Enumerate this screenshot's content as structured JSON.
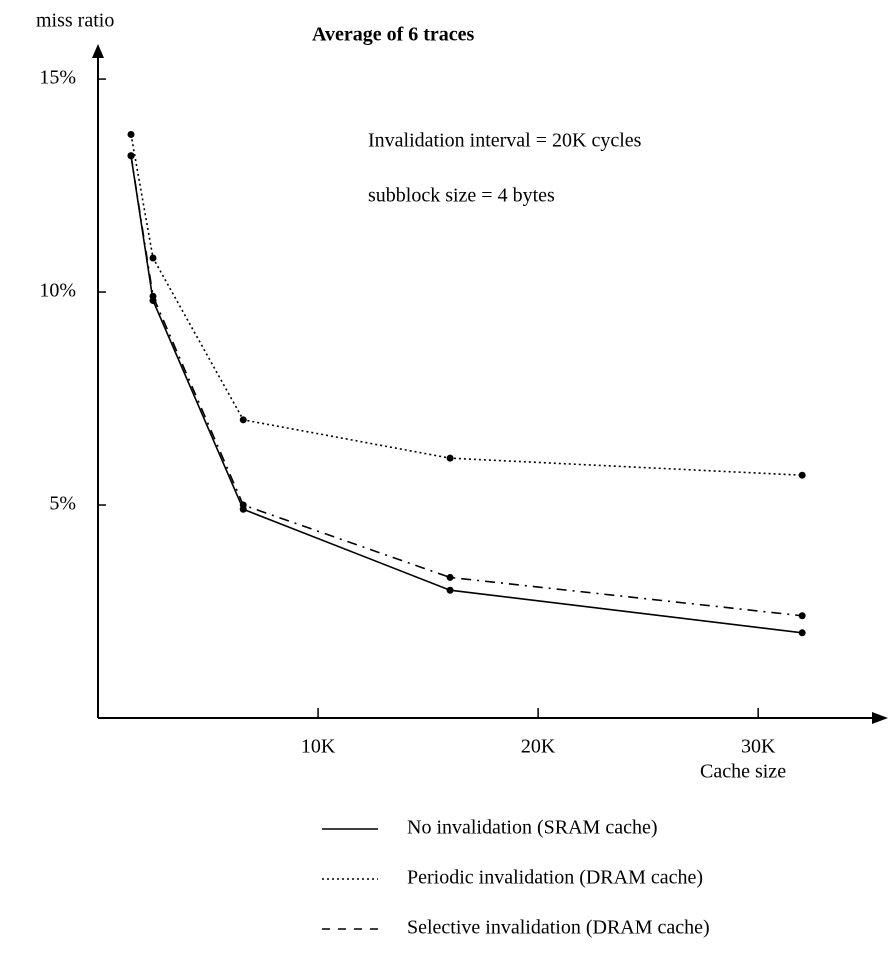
{
  "chart_data": {
    "type": "line",
    "title": "Average of 6 traces",
    "y_label": "miss ratio",
    "x_label": "Cache size",
    "annotations": [
      "Invalidation interval = 20K cycles",
      "subblock size = 4 bytes"
    ],
    "x": [
      1500,
      2500,
      6600,
      16000,
      32000
    ],
    "series": [
      {
        "name": "No invalidation (SRAM cache)",
        "color": "#000000",
        "dash": "solid",
        "values": [
          13.2,
          9.8,
          4.9,
          3.0,
          2.0
        ]
      },
      {
        "name": "Periodic invalidation (DRAM cache)",
        "color": "#000000",
        "dash": "dotted",
        "values": [
          13.7,
          10.8,
          7.0,
          6.1,
          5.7
        ]
      },
      {
        "name": "Selective invalidation (DRAM cache)",
        "color": "#000000",
        "dash": "dashed",
        "values": [
          13.2,
          9.9,
          5.0,
          3.3,
          2.4
        ]
      }
    ],
    "xlim": [
      0,
      35900
    ],
    "ylim": [
      0,
      15.8
    ],
    "xticks": [
      {
        "value": 10000,
        "label": "10K"
      },
      {
        "value": 20000,
        "label": "20K"
      },
      {
        "value": 30000,
        "label": "30K"
      }
    ],
    "yticks": [
      {
        "value": 5,
        "label": "5%"
      },
      {
        "value": 10,
        "label": "10%"
      },
      {
        "value": 15,
        "label": "15%"
      }
    ],
    "grid": false
  }
}
